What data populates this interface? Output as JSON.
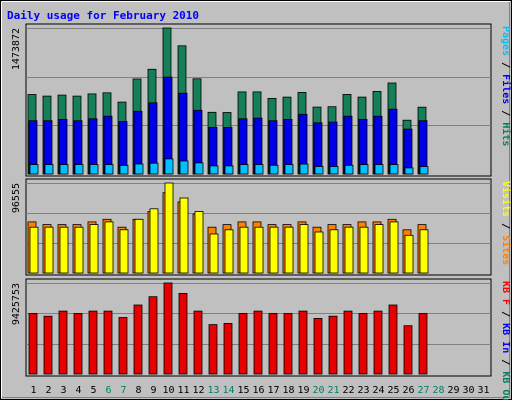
{
  "chart_data": {
    "type": "bar",
    "title": "Daily usage for February 2010",
    "days": [
      "1",
      "2",
      "3",
      "4",
      "5",
      "6",
      "7",
      "8",
      "9",
      "10",
      "11",
      "12",
      "13",
      "14",
      "15",
      "16",
      "17",
      "18",
      "19",
      "20",
      "21",
      "22",
      "23",
      "24",
      "25",
      "26",
      "27",
      "28",
      "29",
      "30",
      "31"
    ],
    "weekend_days": [
      6,
      7,
      13,
      14,
      20,
      21,
      27,
      28
    ],
    "panels": [
      {
        "name": "hits-panel",
        "ymax_label": "1473872",
        "ymax": 1473872,
        "legend": [
          {
            "text": "Pages",
            "color": "#00c0ff"
          },
          {
            "text": " / ",
            "color": "#000000"
          },
          {
            "text": "Files",
            "color": "#0000ff"
          },
          {
            "text": " / ",
            "color": "#000000"
          },
          {
            "text": "Hits",
            "color": "#008060"
          }
        ],
        "series": [
          {
            "name": "Hits",
            "color": "#158058",
            "values": [
              803000,
              786000,
              796000,
              786000,
              809000,
              820000,
              726000,
              959000,
              1057000,
              1473872,
              1294000,
              961000,
              623000,
              621000,
              829000,
              829000,
              763000,
              776000,
              824000,
              675000,
              679000,
              804000,
              776000,
              834000,
              919000,
              543000,
              674000,
              0,
              0,
              0,
              0
            ]
          },
          {
            "name": "Files",
            "color": "#0000e8",
            "values": [
              538000,
              538000,
              551000,
              538000,
              557000,
              583000,
              529000,
              633000,
              719000,
              978000,
              816000,
              643000,
              470000,
              470000,
              557000,
              564000,
              538000,
              551000,
              603000,
              517000,
              524000,
              583000,
              551000,
              583000,
              654000,
              453000,
              538000,
              0,
              0,
              0,
              0
            ]
          },
          {
            "name": "Pages",
            "color": "#00c0ff",
            "values": [
              95000,
              95000,
              95000,
              95000,
              95000,
              95000,
              87000,
              101000,
              109000,
              152000,
              131000,
              112000,
              82000,
              82000,
              95000,
              95000,
              88000,
              95000,
              100000,
              76000,
              76000,
              88000,
              95000,
              95000,
              95000,
              62000,
              75000,
              0,
              0,
              0,
              0
            ]
          }
        ]
      },
      {
        "name": "visits-panel",
        "ymax_label": "96555",
        "ymax": 96555,
        "legend": [
          {
            "text": "Visits",
            "color": "#ffff00"
          },
          {
            "text": " / ",
            "color": "#000000"
          },
          {
            "text": "Sites",
            "color": "#ff8000"
          }
        ],
        "series": [
          {
            "name": "Sites",
            "color": "#ff8000",
            "values": [
              54800,
              51900,
              51900,
              51900,
              54800,
              57600,
              49100,
              57600,
              66000,
              86200,
              76300,
              63300,
              49100,
              51900,
              54800,
              54800,
              51900,
              51900,
              54800,
              49100,
              51900,
              51900,
              54800,
              54800,
              57600,
              46300,
              51900,
              0,
              0,
              0,
              0
            ]
          },
          {
            "name": "Visits",
            "color": "#ffff00",
            "values": [
              49100,
              49100,
              49100,
              49100,
              51900,
              54800,
              46300,
              57600,
              68900,
              96555,
              80500,
              66000,
              41800,
              46300,
              49100,
              49100,
              49100,
              49100,
              51900,
              44000,
              46300,
              49100,
              49100,
              51900,
              54800,
              40400,
              46300,
              0,
              0,
              0,
              0
            ]
          }
        ]
      },
      {
        "name": "kbytes-panel",
        "ymax_label": "9425753",
        "ymax": 9425753,
        "legend": [
          {
            "text": "KB F",
            "color": "#ff0000"
          },
          {
            "text": " / ",
            "color": "#000000"
          },
          {
            "text": "KB In",
            "color": "#0000ff"
          },
          {
            "text": " / ",
            "color": "#000000"
          },
          {
            "text": "KB Out",
            "color": "#008060"
          }
        ],
        "series": [
          {
            "name": "KB F",
            "color": "#e60000",
            "values": [
              6270000,
              5990000,
              6510000,
              6270000,
              6510000,
              6510000,
              5850000,
              7150000,
              8010000,
              9425753,
              8350000,
              6510000,
              5120000,
              5240000,
              6270000,
              6510000,
              6270000,
              6270000,
              6510000,
              5760000,
              5990000,
              6510000,
              6270000,
              6510000,
              7150000,
              5000000,
              6270000,
              0,
              0,
              0,
              0
            ]
          }
        ]
      }
    ]
  }
}
